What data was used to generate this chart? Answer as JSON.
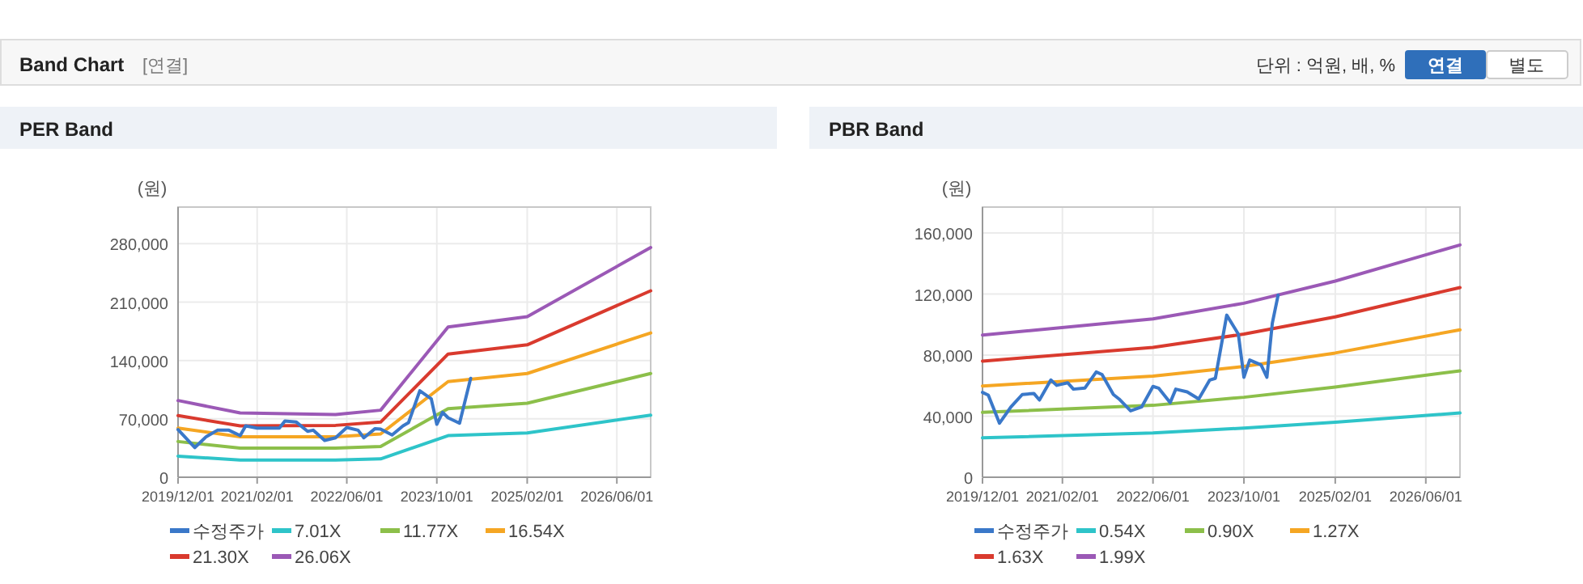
{
  "chart_data": [
    {
      "type": "other",
      "title": "Band Chart",
      "annotations": [
        "[연결]",
        "단위 : 억원, 배, %",
        "연결",
        "별도"
      ]
    },
    {
      "type": "line",
      "title": "PER Band",
      "ylabel": "(원)",
      "xlim": [
        "2019-12-01",
        "2026-12-01"
      ],
      "ylim": [
        0,
        324000
      ],
      "xticks": [
        {
          "value": "2019-12-01",
          "label": "2019/12/01"
        },
        {
          "value": "2021-02-01",
          "label": "2021/02/01"
        },
        {
          "value": "2022-06-01",
          "label": "2022/06/01"
        },
        {
          "value": "2023-10-01",
          "label": "2023/10/01"
        },
        {
          "value": "2025-02-01",
          "label": "2025/02/01"
        },
        {
          "value": "2026-06-01",
          "label": "2026/06/01"
        }
      ],
      "yticks": [
        0,
        {
          "value": 70000,
          "label": "70,000"
        },
        {
          "value": 140000,
          "label": "140,000"
        },
        {
          "value": 210000,
          "label": "210,000"
        },
        {
          "value": 280000,
          "label": "280,000"
        }
      ],
      "grid": true,
      "legend": "bottom",
      "series": [
        {
          "name": "수정주가",
          "color": "#3a78c9",
          "x": [
            "2019-12",
            "2020-03",
            "2020-05",
            "2020-07",
            "2020-09",
            "2020-11",
            "2020-12",
            "2021-02",
            "2021-06",
            "2021-07",
            "2021-09",
            "2021-11",
            "2021-12",
            "2022-02",
            "2022-04",
            "2022-06",
            "2022-08",
            "2022-09",
            "2022-11",
            "2022-12",
            "2023-02",
            "2023-04",
            "2023-05",
            "2023-07",
            "2023-09",
            "2023-10",
            "2023-11",
            "2023-12",
            "2024-02",
            "2024-04"
          ],
          "values": [
            57000,
            35600,
            48600,
            56400,
            56400,
            49900,
            61600,
            59000,
            59000,
            67400,
            66100,
            55100,
            56400,
            44100,
            47300,
            59600,
            56400,
            47300,
            58300,
            57700,
            50600,
            61600,
            65500,
            103700,
            94000,
            63500,
            77800,
            71300,
            64800,
            118600
          ]
        },
        {
          "name": "7.01X",
          "color": "#2ec4c9",
          "x": [
            "2019-12",
            "2020-11",
            "2022-04",
            "2022-12",
            "2023-12",
            "2025-02",
            "2026-12"
          ],
          "values": [
            25300,
            20700,
            20700,
            22000,
            49900,
            53100,
            74500
          ]
        },
        {
          "name": "11.77X",
          "color": "#8cbf4a",
          "x": [
            "2019-12",
            "2020-11",
            "2022-04",
            "2022-12",
            "2023-12",
            "2025-02",
            "2026-12"
          ],
          "values": [
            42800,
            35000,
            35000,
            36900,
            82300,
            88800,
            124400
          ]
        },
        {
          "name": "16.54X",
          "color": "#f5a623",
          "x": [
            "2019-12",
            "2020-11",
            "2022-04",
            "2022-12",
            "2023-12",
            "2025-02",
            "2026-12"
          ],
          "values": [
            59000,
            48600,
            48600,
            51900,
            114700,
            124400,
            173000
          ]
        },
        {
          "name": "21.30X",
          "color": "#d93a2e",
          "x": [
            "2019-12",
            "2020-11",
            "2022-04",
            "2022-12",
            "2023-12",
            "2025-02",
            "2026-12"
          ],
          "values": [
            73900,
            61600,
            62200,
            66100,
            147800,
            158800,
            223600
          ]
        },
        {
          "name": "26.06X",
          "color": "#9b59b6",
          "x": [
            "2019-12",
            "2020-11",
            "2022-04",
            "2022-12",
            "2023-12",
            "2025-02",
            "2026-12"
          ],
          "values": [
            92000,
            77100,
            75200,
            80400,
            180200,
            192500,
            275500
          ]
        }
      ]
    },
    {
      "type": "line",
      "title": "PBR Band",
      "ylabel": "(원)",
      "xlim": [
        "2019-12-01",
        "2026-12-01"
      ],
      "ylim": [
        0,
        177000
      ],
      "xticks": [
        {
          "value": "2019-12-01",
          "label": "2019/12/01"
        },
        {
          "value": "2021-02-01",
          "label": "2021/02/01"
        },
        {
          "value": "2022-06-01",
          "label": "2022/06/01"
        },
        {
          "value": "2023-10-01",
          "label": "2023/10/01"
        },
        {
          "value": "2025-02-01",
          "label": "2025/02/01"
        },
        {
          "value": "2026-06-01",
          "label": "2026/06/01"
        }
      ],
      "yticks": [
        0,
        {
          "value": 40000,
          "label": "40,000"
        },
        {
          "value": 80000,
          "label": "80,000"
        },
        {
          "value": 120000,
          "label": "120,000"
        },
        {
          "value": 160000,
          "label": "160,000"
        }
      ],
      "grid": true,
      "legend": "bottom",
      "series": [
        {
          "name": "수정주가",
          "color": "#3a78c9",
          "x": [
            "2019-12",
            "2020-01",
            "2020-03",
            "2020-05",
            "2020-07",
            "2020-09",
            "2020-10",
            "2020-12",
            "2021-01",
            "2021-03",
            "2021-04",
            "2021-06",
            "2021-08",
            "2021-09",
            "2021-11",
            "2021-12",
            "2022-02",
            "2022-04",
            "2022-06",
            "2022-07",
            "2022-09",
            "2022-10",
            "2022-12",
            "2023-02",
            "2023-04",
            "2023-05",
            "2023-07",
            "2023-09",
            "2023-10",
            "2023-11",
            "2024-01",
            "2024-02",
            "2024-03",
            "2024-04"
          ],
          "values": [
            55600,
            53800,
            35400,
            46000,
            54200,
            54900,
            50600,
            63700,
            60200,
            61900,
            57700,
            58400,
            69000,
            67300,
            54200,
            51300,
            43500,
            46000,
            59500,
            58400,
            48900,
            57700,
            55900,
            51300,
            63700,
            64800,
            106200,
            93800,
            65500,
            76800,
            73600,
            65500,
            100900,
            119300
          ]
        },
        {
          "name": "0.54X",
          "color": "#2ec4c9",
          "x": [
            "2019-12",
            "2022-06",
            "2023-10",
            "2025-02",
            "2026-12"
          ],
          "values": [
            25800,
            29000,
            32200,
            36100,
            42100
          ]
        },
        {
          "name": "0.90X",
          "color": "#8cbf4a",
          "x": [
            "2019-12",
            "2022-06",
            "2023-10",
            "2025-02",
            "2026-12"
          ],
          "values": [
            42500,
            47100,
            52400,
            59100,
            69700
          ]
        },
        {
          "name": "1.27X",
          "color": "#f5a623",
          "x": [
            "2019-12",
            "2022-06",
            "2023-10",
            "2025-02",
            "2026-12"
          ],
          "values": [
            59800,
            66200,
            72600,
            81400,
            96600
          ]
        },
        {
          "name": "1.63X",
          "color": "#d93a2e",
          "x": [
            "2019-12",
            "2022-06",
            "2023-10",
            "2025-02",
            "2026-12"
          ],
          "values": [
            76100,
            85000,
            93800,
            105100,
            124300
          ]
        },
        {
          "name": "1.99X",
          "color": "#9b59b6",
          "x": [
            "2019-12",
            "2022-06",
            "2023-10",
            "2025-02",
            "2026-12"
          ],
          "values": [
            93100,
            103700,
            114000,
            128500,
            152200
          ]
        }
      ]
    }
  ]
}
